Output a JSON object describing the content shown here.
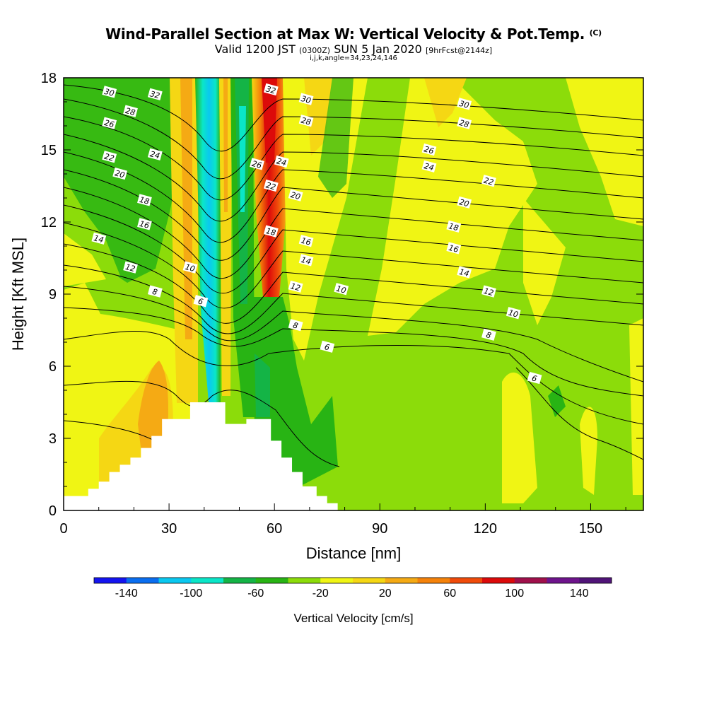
{
  "header": {
    "title_main": "Wind-Parallel Section at Max W: Vertical Velocity & Pot.Temp.",
    "title_copy": "(C)",
    "sub_valid": "Valid 1200 JST",
    "sub_utc": "(0300Z)",
    "sub_date": "SUN 5 Jan 2020",
    "sub_fcst": "[9hrFcst@2144z]",
    "sub_ijk": "i,j,k,angle=34,23,24,146"
  },
  "chart_data": {
    "type": "heatmap",
    "title": "Wind-Parallel Section at Max W: Vertical Velocity & Pot.Temp.",
    "xlabel": "Distance [nm]",
    "ylabel": "Height [Kft MSL]",
    "xlim": [
      0,
      165
    ],
    "ylim": [
      0,
      18
    ],
    "xticks": [
      0,
      30,
      60,
      90,
      120,
      150
    ],
    "yticks": [
      0,
      3,
      6,
      9,
      12,
      15,
      18
    ],
    "colorbar": {
      "label": "Vertical Velocity [cm/s]",
      "tick_labels": [
        "-140",
        "-100",
        "-60",
        "-20",
        "20",
        "60",
        "100",
        "140"
      ],
      "levels": [
        -160,
        -140,
        -120,
        -100,
        -80,
        -60,
        -40,
        -20,
        0,
        20,
        40,
        60,
        80,
        100,
        120,
        140,
        160
      ],
      "colors": [
        "#1414f0",
        "#0a6ef0",
        "#0ac8f0",
        "#0ae6c8",
        "#14b446",
        "#28b414",
        "#8cdc0a",
        "#f0f514",
        "#f5d714",
        "#f5aa14",
        "#f5820a",
        "#f04b0a",
        "#dc0a0a",
        "#a0104b",
        "#6e148c",
        "#501478"
      ]
    },
    "field_regions": [
      {
        "name": "negative-plume-left",
        "x": [
          38,
          43
        ],
        "y_range": [
          4.5,
          18
        ],
        "value": -80
      },
      {
        "name": "negative-plume-center",
        "x": [
          46,
          53
        ],
        "y_range": [
          4,
          18
        ],
        "value": -50
      },
      {
        "name": "positive-plume",
        "x": [
          56,
          62
        ],
        "y_range": [
          10,
          18
        ],
        "value": 110
      },
      {
        "name": "positive-lower-left",
        "x": [
          20,
          32
        ],
        "y_range": [
          1,
          6
        ],
        "value": 50
      },
      {
        "name": "descent-leeside",
        "x": [
          55,
          80
        ],
        "y_range": [
          0.5,
          6
        ],
        "value": -30
      },
      {
        "name": "upper-left-descent",
        "x": [
          0,
          35
        ],
        "y_range": [
          12,
          18
        ],
        "value": -30
      }
    ],
    "terrain_nm": [
      0,
      4,
      7,
      10,
      13,
      16,
      19,
      22,
      25,
      28,
      32,
      36,
      46,
      49,
      52,
      55,
      59,
      62,
      65,
      68,
      72,
      75
    ],
    "terrain_kft": [
      0.6,
      0.6,
      0.9,
      1.2,
      1.6,
      1.9,
      2.2,
      2.6,
      3.1,
      3.8,
      3.8,
      4.5,
      3.6,
      3.6,
      3.8,
      3.8,
      2.9,
      2.2,
      1.6,
      1.0,
      0.6,
      0.3
    ],
    "theta_contour_labels": [
      {
        "label": "30",
        "x": 13,
        "y": 17.4
      },
      {
        "label": "32",
        "x": 26,
        "y": 17.3
      },
      {
        "label": "28",
        "x": 19,
        "y": 16.6
      },
      {
        "label": "26",
        "x": 13,
        "y": 16.1
      },
      {
        "label": "24",
        "x": 26,
        "y": 14.8
      },
      {
        "label": "22",
        "x": 13,
        "y": 14.7
      },
      {
        "label": "20",
        "x": 16,
        "y": 14.0
      },
      {
        "label": "18",
        "x": 23,
        "y": 12.9
      },
      {
        "label": "16",
        "x": 23,
        "y": 11.9
      },
      {
        "label": "14",
        "x": 10,
        "y": 11.3
      },
      {
        "label": "12",
        "x": 19,
        "y": 10.1
      },
      {
        "label": "10",
        "x": 36,
        "y": 10.1
      },
      {
        "label": "8",
        "x": 26,
        "y": 9.1
      },
      {
        "label": "6",
        "x": 39,
        "y": 8.7
      },
      {
        "label": "32",
        "x": 59,
        "y": 17.5
      },
      {
        "label": "30",
        "x": 69,
        "y": 17.1
      },
      {
        "label": "28",
        "x": 69,
        "y": 16.2
      },
      {
        "label": "26",
        "x": 55,
        "y": 14.4
      },
      {
        "label": "24",
        "x": 62,
        "y": 14.5
      },
      {
        "label": "22",
        "x": 59,
        "y": 13.5
      },
      {
        "label": "20",
        "x": 66,
        "y": 13.1
      },
      {
        "label": "18",
        "x": 59,
        "y": 11.6
      },
      {
        "label": "16",
        "x": 69,
        "y": 11.2
      },
      {
        "label": "14",
        "x": 69,
        "y": 10.4
      },
      {
        "label": "12",
        "x": 66,
        "y": 9.3
      },
      {
        "label": "10",
        "x": 79,
        "y": 9.2
      },
      {
        "label": "8",
        "x": 66,
        "y": 7.7
      },
      {
        "label": "6",
        "x": 75,
        "y": 6.8
      },
      {
        "label": "30",
        "x": 114,
        "y": 16.9
      },
      {
        "label": "28",
        "x": 114,
        "y": 16.1
      },
      {
        "label": "26",
        "x": 104,
        "y": 15.0
      },
      {
        "label": "24",
        "x": 104,
        "y": 14.3
      },
      {
        "label": "22",
        "x": 121,
        "y": 13.7
      },
      {
        "label": "20",
        "x": 114,
        "y": 12.8
      },
      {
        "label": "18",
        "x": 111,
        "y": 11.8
      },
      {
        "label": "16",
        "x": 111,
        "y": 10.9
      },
      {
        "label": "14",
        "x": 114,
        "y": 9.9
      },
      {
        "label": "12",
        "x": 121,
        "y": 9.1
      },
      {
        "label": "10",
        "x": 128,
        "y": 8.2
      },
      {
        "label": "8",
        "x": 121,
        "y": 7.3
      },
      {
        "label": "6",
        "x": 134,
        "y": 5.5
      }
    ]
  }
}
